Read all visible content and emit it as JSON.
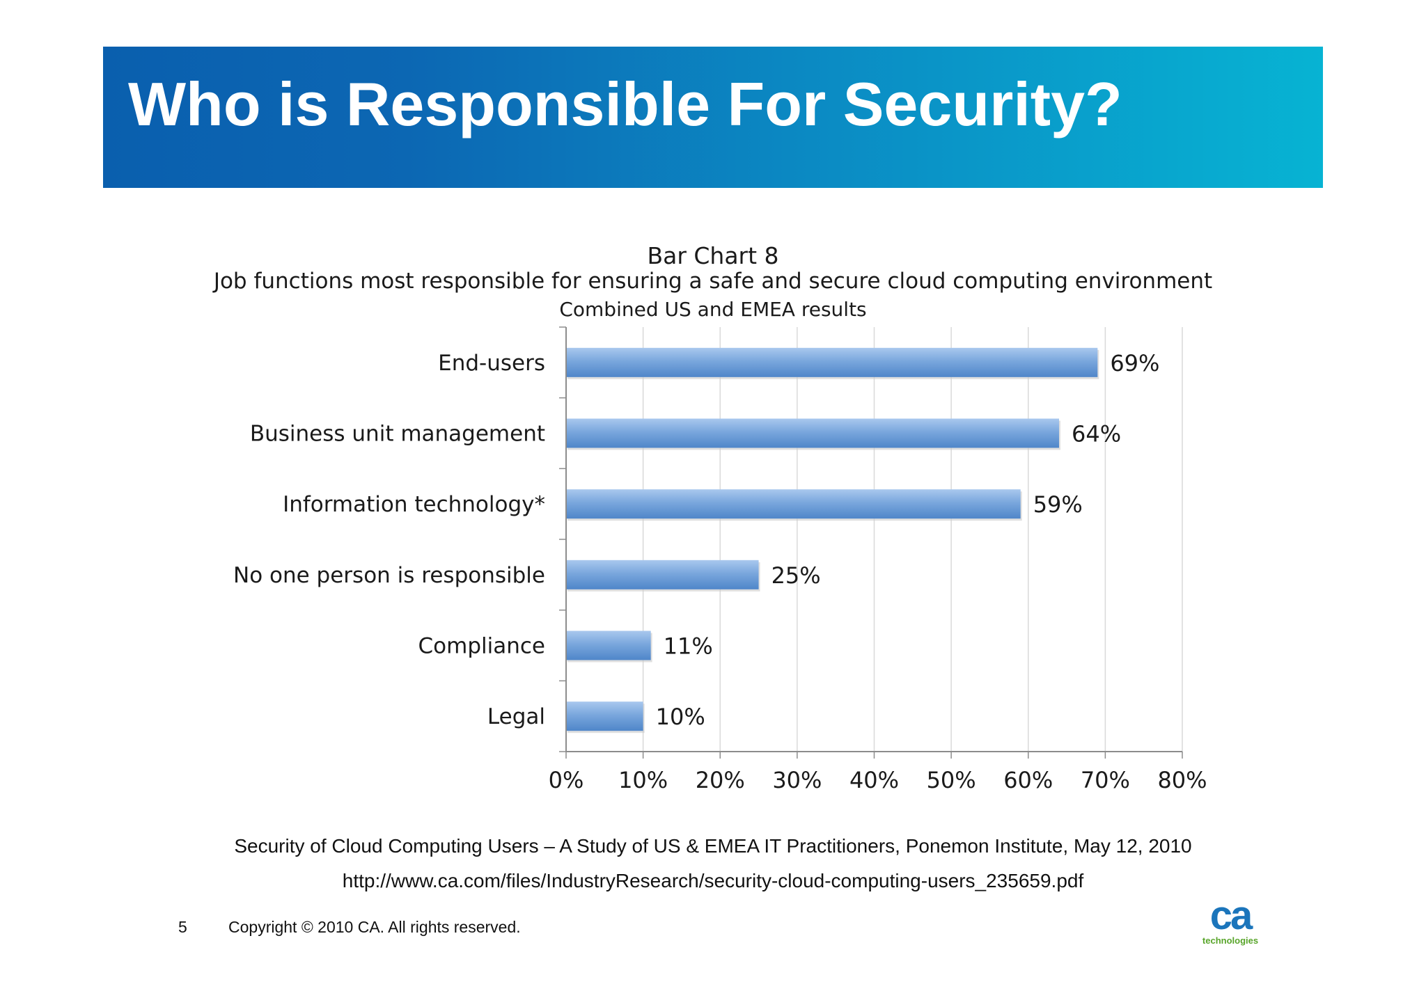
{
  "slide": {
    "title": "Who is Responsible For Security?",
    "source_line": "Security of Cloud Computing Users – A Study of US & EMEA IT Practitioners, Ponemon Institute, May 12, 2010",
    "url_line": "http://www.ca.com/files/IndustryResearch/security-cloud-computing-users_235659.pdf",
    "page_number": "5",
    "copyright": "Copyright © 2010 CA. All rights reserved.",
    "logo_mark": "ca",
    "logo_word": "technologies"
  },
  "colors": {
    "banner_start": "#0a5fae",
    "banner_end": "#07b3d3",
    "bar_fill": "#6f9fd8",
    "logo_blue": "#1b75bb",
    "logo_green": "#58a52a"
  },
  "chart_data": {
    "type": "bar",
    "orientation": "horizontal",
    "title": "Bar Chart 8",
    "subtitle": "Job functions most responsible for ensuring a safe and secure cloud computing environment",
    "subtitle2": "Combined US and EMEA results",
    "categories": [
      "End-users",
      "Business unit management",
      "Information technology*",
      "No one person is responsible",
      "Compliance",
      "Legal"
    ],
    "values": [
      69,
      64,
      59,
      25,
      11,
      10
    ],
    "value_labels": [
      "69%",
      "64%",
      "59%",
      "25%",
      "11%",
      "10%"
    ],
    "xlim": [
      0,
      80
    ],
    "xticks": [
      "0%",
      "10%",
      "20%",
      "30%",
      "40%",
      "50%",
      "60%",
      "70%",
      "80%"
    ],
    "grid": true,
    "legend": "none"
  }
}
